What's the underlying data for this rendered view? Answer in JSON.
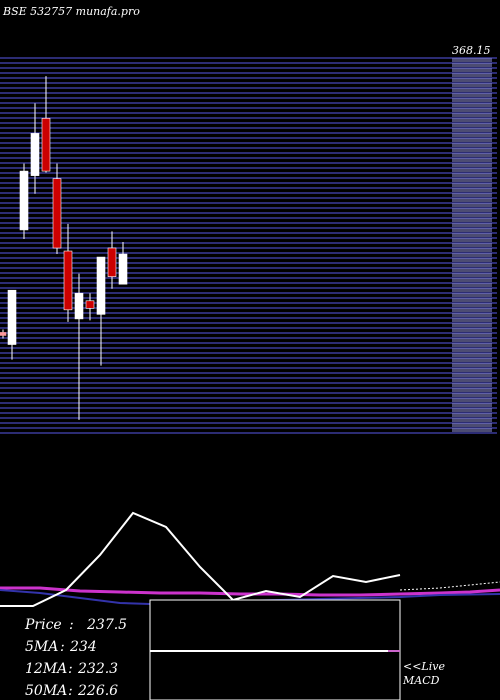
{
  "header": {
    "title": "BSE 532757 munafa.pro"
  },
  "price_panel": {
    "top_price_label": "368.15",
    "colors": {
      "bg": "#000000",
      "grid": "#3b3b9a",
      "up": "#ffffff",
      "down": "#cc0000",
      "small": "#ff9999"
    }
  },
  "chart_data": {
    "type": "candlestick",
    "ylim": [
      130,
      380
    ],
    "top_label": "368.15",
    "candles": [
      {
        "open": 198,
        "close": 196,
        "high": 200,
        "low": 194,
        "color": "small"
      },
      {
        "open": 190,
        "close": 226,
        "high": 226,
        "low": 180,
        "color": "up"
      },
      {
        "open": 266,
        "close": 305,
        "high": 310,
        "low": 260,
        "color": "up"
      },
      {
        "open": 302,
        "close": 330,
        "high": 350,
        "low": 290,
        "color": "up"
      },
      {
        "open": 340,
        "close": 305,
        "high": 368,
        "low": 304,
        "color": "down"
      },
      {
        "open": 300,
        "close": 254,
        "high": 310,
        "low": 250,
        "color": "down"
      },
      {
        "open": 252,
        "close": 213,
        "high": 270,
        "low": 205,
        "color": "down"
      },
      {
        "open": 207,
        "close": 224,
        "high": 237,
        "low": 140,
        "color": "up"
      },
      {
        "open": 219,
        "close": 214,
        "high": 224,
        "low": 206,
        "color": "down"
      },
      {
        "open": 210,
        "close": 248,
        "high": 248,
        "low": 176,
        "color": "up"
      },
      {
        "open": 254,
        "close": 235,
        "high": 265,
        "low": 227,
        "color": "down"
      },
      {
        "open": 230,
        "close": 250,
        "high": 258,
        "low": 230,
        "color": "up"
      }
    ]
  },
  "indicators": {
    "price_label": "Price",
    "price_value": "237.5",
    "ma5_label": "5MA",
    "ma5_value": "234",
    "ma12_label": "12MA",
    "ma12_value": "232.3",
    "ma50_label": "50MA",
    "ma50_value": "226.6",
    "separator": ":",
    "macd_label_1": "<<Live",
    "macd_label_2": "MACD"
  }
}
